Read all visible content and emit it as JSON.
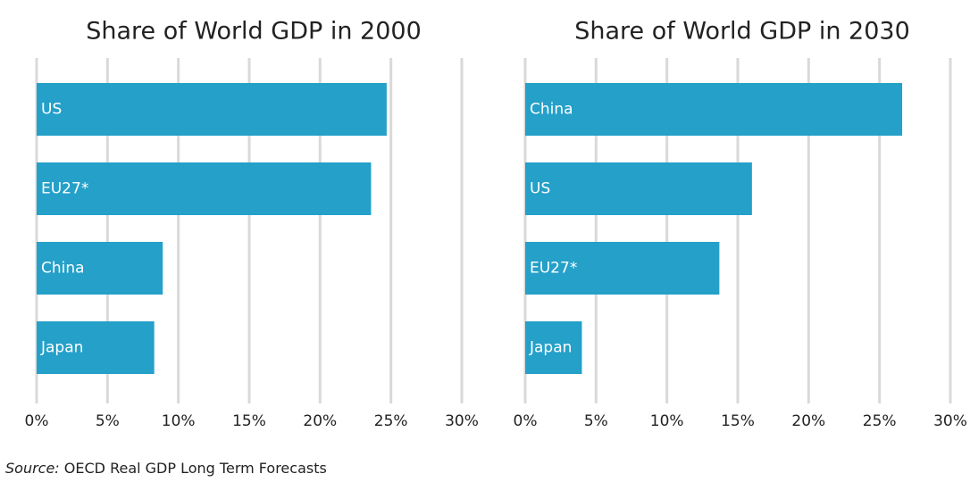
{
  "chart_data": [
    {
      "type": "bar",
      "orientation": "horizontal",
      "title": "Share of World GDP in 2000",
      "categories": [
        "US",
        "EU27*",
        "China",
        "Japan"
      ],
      "values": [
        24.7,
        23.6,
        8.9,
        8.3
      ],
      "color": "#24a0c9",
      "xlim": [
        0,
        30
      ],
      "xticks": [
        {
          "value": 0,
          "label": "0%"
        },
        {
          "value": 5,
          "label": "5%"
        },
        {
          "value": 10,
          "label": "10%"
        },
        {
          "value": 15,
          "label": "15%"
        },
        {
          "value": 20,
          "label": "20%"
        },
        {
          "value": 25,
          "label": "25%"
        },
        {
          "value": 30,
          "label": "30%"
        }
      ],
      "grid": true
    },
    {
      "type": "bar",
      "orientation": "horizontal",
      "title": "Share of World GDP in 2030",
      "categories": [
        "China",
        "US",
        "EU27*",
        "Japan"
      ],
      "values": [
        26.6,
        16.0,
        13.7,
        4.0
      ],
      "color": "#24a0c9",
      "xlim": [
        0,
        30
      ],
      "xticks": [
        {
          "value": 0,
          "label": "0%"
        },
        {
          "value": 5,
          "label": "5%"
        },
        {
          "value": 10,
          "label": "10%"
        },
        {
          "value": 15,
          "label": "15%"
        },
        {
          "value": 20,
          "label": "20%"
        },
        {
          "value": 25,
          "label": "25%"
        },
        {
          "value": 30,
          "label": "30%"
        }
      ],
      "grid": true
    }
  ],
  "source": {
    "label": "Source:",
    "text": "OECD Real GDP Long Term Forecasts"
  }
}
